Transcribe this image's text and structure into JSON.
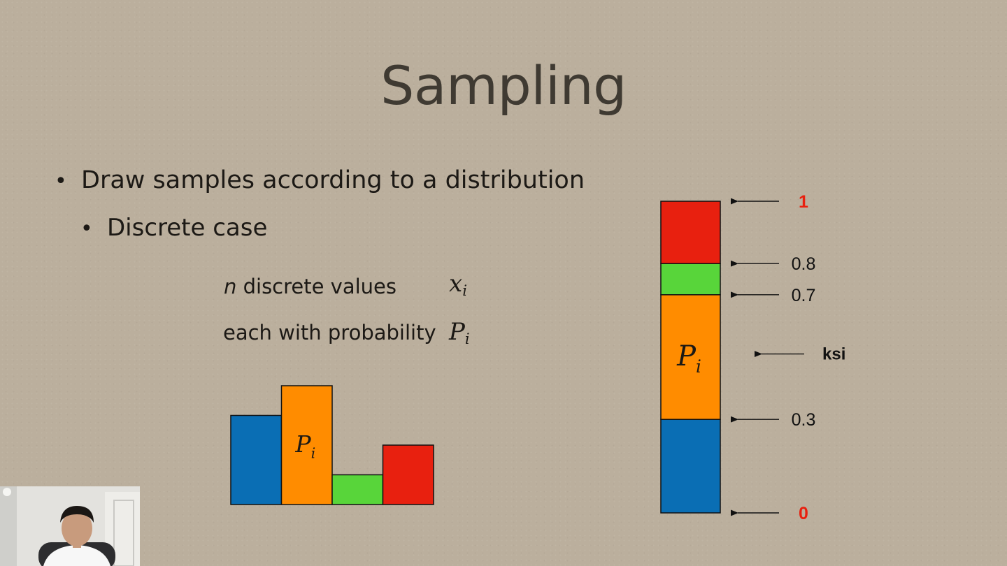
{
  "slide": {
    "title": "Sampling",
    "bullets": [
      {
        "text": "Draw samples according to a distribution"
      },
      {
        "text": "Discrete case"
      }
    ],
    "definitions": {
      "n_var": "n",
      "n_rest": " discrete values",
      "x_base": "x",
      "x_sub": "i",
      "prob_text": "each with probability",
      "p_base": "P",
      "p_sub": "i"
    }
  },
  "chart_data": [
    {
      "type": "bar",
      "title": "",
      "categories": [
        "",
        "",
        "",
        ""
      ],
      "values": [
        0.3,
        0.4,
        0.1,
        0.2
      ],
      "colors": [
        "#0a6eb4",
        "#ff8c00",
        "#58d53a",
        "#e8200f"
      ],
      "bar_label": {
        "base": "P",
        "sub": "i",
        "bar_index": 1
      }
    },
    {
      "type": "bar",
      "stacked": true,
      "title": "",
      "ylim": [
        0,
        1
      ],
      "segments": [
        {
          "from": 0,
          "to": 0.3,
          "color": "#0a6eb4"
        },
        {
          "from": 0.3,
          "to": 0.7,
          "color": "#ff8c00",
          "label_base": "P",
          "label_sub": "i"
        },
        {
          "from": 0.7,
          "to": 0.8,
          "color": "#58d53a"
        },
        {
          "from": 0.8,
          "to": 1,
          "color": "#e8200f"
        }
      ],
      "markers": [
        {
          "value": 1,
          "label": "1",
          "color": "#e8200f",
          "bold": true
        },
        {
          "value": 0.8,
          "label": "0.8",
          "color": "#111111",
          "bold": false
        },
        {
          "value": 0.7,
          "label": "0.7",
          "color": "#111111",
          "bold": false
        },
        {
          "value": 0.3,
          "label": "0.3",
          "color": "#111111",
          "bold": false
        },
        {
          "value": 0,
          "label": "0",
          "color": "#e8200f",
          "bold": true
        }
      ],
      "ksi": {
        "label": "ksi",
        "value": 0.51
      }
    }
  ]
}
